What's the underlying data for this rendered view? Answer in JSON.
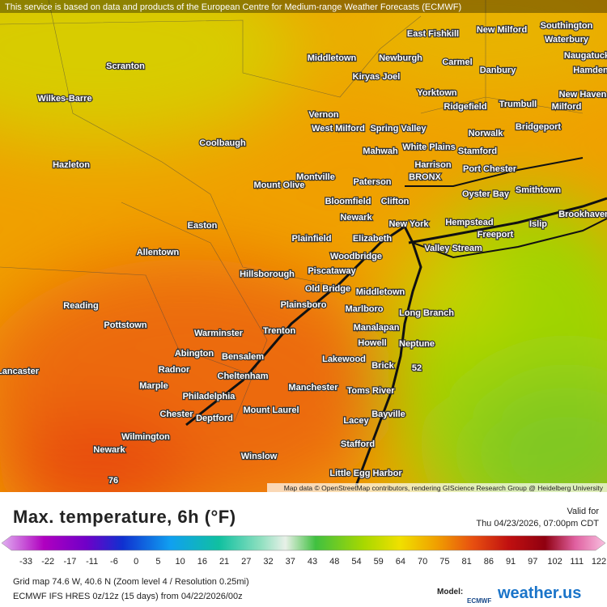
{
  "header": {
    "attribution": "This service is based on data and products of the European Centre for Medium-range Weather Forecasts (ECMWF)"
  },
  "map": {
    "credit": "Map data © OpenStreetMap contributors, rendering GIScience Research Group @ Heidelberg University",
    "places": [
      "Scranton",
      "Wilkes-Barre",
      "Hazleton",
      "Allentown",
      "Easton",
      "Reading",
      "Pottstown",
      "Coolbaugh",
      "Middletown",
      "Newburgh",
      "Kiryas Joel",
      "East Fishkill",
      "New Milford",
      "Southington",
      "Waterbury",
      "Naugatuck",
      "Hamden",
      "Carmel",
      "Danbury",
      "Yorktown",
      "Ridgefield",
      "Trumbull",
      "Milford",
      "New Haven",
      "Vernon",
      "West Milford",
      "Spring Valley",
      "Norwalk",
      "Bridgeport",
      "Mahwah",
      "White Plains",
      "Stamford",
      "Harrison",
      "Port Chester",
      "Montville",
      "Mount Olive",
      "Paterson",
      "BRONX",
      "Oyster Bay",
      "Smithtown",
      "Bloomfield",
      "Clifton",
      "Newark",
      "New York",
      "Hempstead",
      "Islip",
      "Brookhaven",
      "Plainfield",
      "Elizabeth",
      "Freeport",
      "Valley Stream",
      "Woodbridge",
      "Piscataway",
      "Hillsborough",
      "Old Bridge",
      "Middletown",
      "Plainsboro",
      "Marlboro",
      "Long Branch",
      "Warminster",
      "Trenton",
      "Manalapan",
      "Neptune",
      "Howell",
      "Abington",
      "Bensalem",
      "Radnor",
      "Cheltenham",
      "Lakewood",
      "Brick",
      "Lancaster",
      "Marple",
      "Manchester",
      "Toms River",
      "Philadelphia",
      "Mount Laurel",
      "Chester",
      "Deptford",
      "Bayville",
      "Lacey",
      "Wilmington",
      "Stafford",
      "Newark",
      "Winslow",
      "Little Egg Harbor"
    ],
    "max_label": 76,
    "min_label": 52
  },
  "panel": {
    "title": "Max. temperature, 6h (°F)",
    "valid_label": "Valid for",
    "valid_time": "Thu 04/23/2026, 07:00pm CDT",
    "legend_ticks": [
      -33,
      -22,
      -17,
      -11,
      -6,
      0,
      5,
      10,
      16,
      21,
      27,
      32,
      37,
      43,
      48,
      54,
      59,
      64,
      70,
      75,
      81,
      86,
      91,
      97,
      102,
      111,
      122
    ],
    "grid_info": "Grid map 74.6 W, 40.6 N (Zoom level 4 / Resolution 0.25mi)",
    "model_info": "ECMWF IFS HRES 0z/12z (15 days) from 04/22/2026/00z",
    "model_label": "Model:",
    "model_name": "ECMWF",
    "brand": "weather.us"
  }
}
